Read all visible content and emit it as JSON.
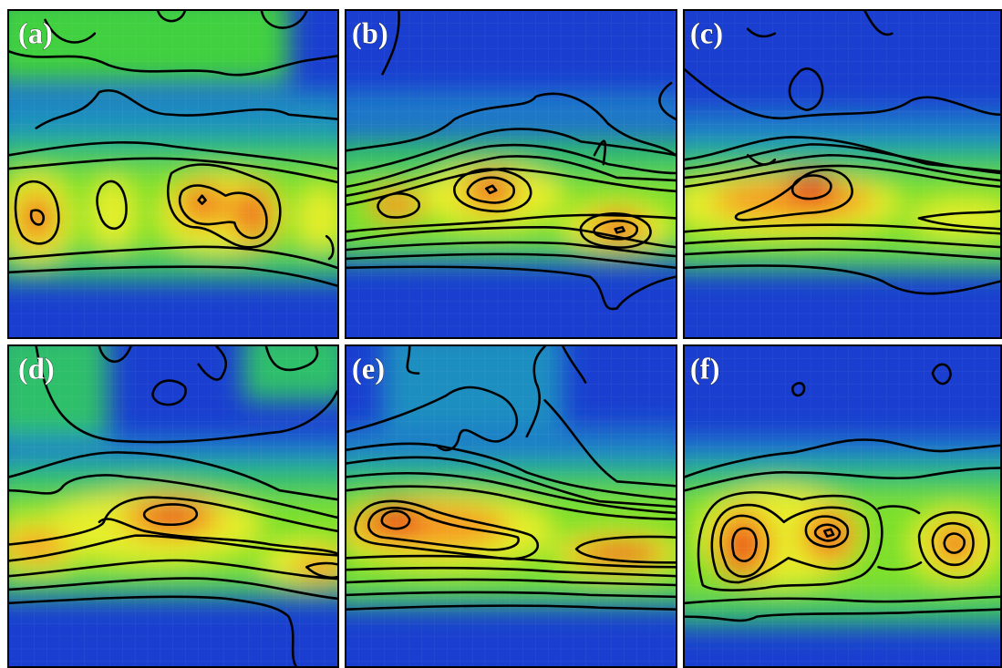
{
  "figure": {
    "panels": [
      {
        "id": "a",
        "label": "(a)"
      },
      {
        "id": "b",
        "label": "(b)"
      },
      {
        "id": "c",
        "label": "(c)"
      },
      {
        "id": "d",
        "label": "(d)"
      },
      {
        "id": "e",
        "label": "(e)"
      },
      {
        "id": "f",
        "label": "(f)"
      }
    ],
    "colormap": [
      "#1a3fd0",
      "#1f7ec8",
      "#2fbf6a",
      "#7be02a",
      "#e6ee2a",
      "#f59a24",
      "#e6401d"
    ]
  }
}
